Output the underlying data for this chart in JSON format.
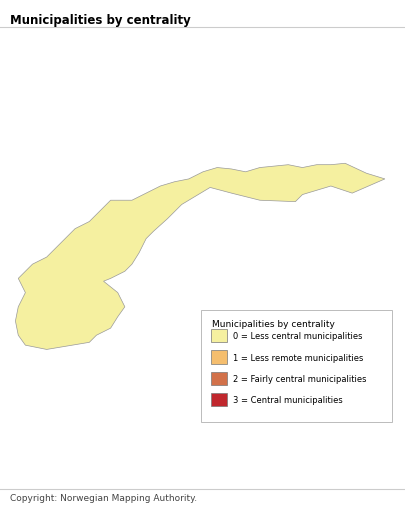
{
  "title": "Municipalities by centrality",
  "title_fontsize": 8.5,
  "title_fontweight": "bold",
  "copyright_text": "Copyright: Norwegian Mapping Authority.",
  "copyright_fontsize": 6.5,
  "legend_title": "Municipalities by centrality",
  "legend_entries": [
    {
      "label": "0 = Less central municipalities",
      "color": "#F5F0A0"
    },
    {
      "label": "1 = Less remote municipalities",
      "color": "#F5BE6E"
    },
    {
      "label": "2 = Fairly central municipalities",
      "color": "#D2714A"
    },
    {
      "label": "3 = Central municipalities",
      "color": "#C0272D"
    }
  ],
  "background_color": "#ffffff",
  "border_color": "#999999",
  "border_linewidth": 0.25,
  "map_background": "#ffffff",
  "figsize": [
    4.06,
    5.1
  ],
  "dpi": 100,
  "legend_title_fontsize": 6.5,
  "legend_label_fontsize": 6.0,
  "centrality_colors": {
    "0": "#F5F0A0",
    "1": "#F5BE6E",
    "2": "#D2714A",
    "3": "#C0272D"
  }
}
